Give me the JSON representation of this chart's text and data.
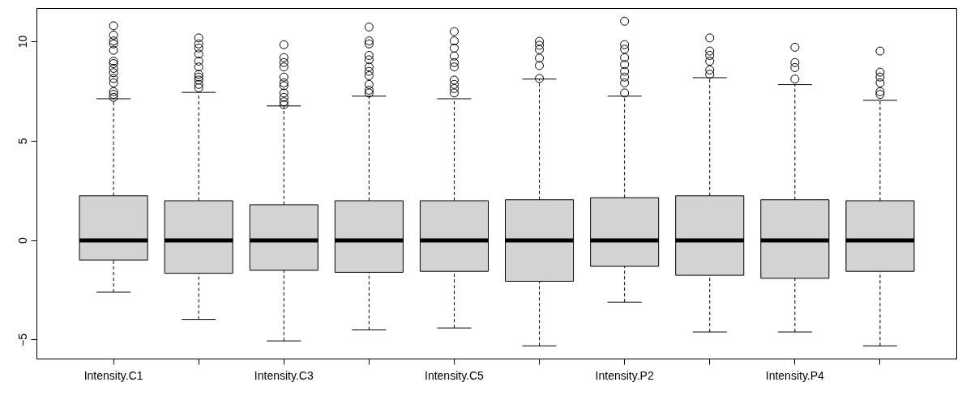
{
  "chart_data": {
    "type": "box",
    "categories": [
      "Intensity.C1",
      null,
      "Intensity.C3",
      null,
      "Intensity.C5",
      null,
      "Intensity.P2",
      null,
      "Intensity.P4",
      null
    ],
    "ylim": [
      -5.96,
      11.67
    ],
    "yticks": [
      -5,
      0,
      5,
      10
    ],
    "grid": false,
    "marker": "circle",
    "series": [
      {
        "color": "#d3d3d3",
        "boxes": [
          {
            "low": -2.6,
            "q1": -0.98,
            "median": 0,
            "q3": 2.25,
            "high": 7.13,
            "outliers": [
              10.8,
              10.33,
              10.04,
              9.89,
              9.57,
              9.02,
              8.9,
              8.66,
              8.44,
              8.15,
              7.93,
              7.49,
              7.35,
              7.2
            ]
          },
          {
            "low": -3.97,
            "q1": -1.65,
            "median": 0,
            "q3": 2.0,
            "high": 7.45,
            "outliers": [
              10.19,
              9.89,
              9.68,
              9.38,
              9.02,
              8.73,
              8.36,
              8.22,
              8.07,
              7.85,
              7.68
            ]
          },
          {
            "low": -5.05,
            "q1": -1.5,
            "median": 0,
            "q3": 1.8,
            "high": 6.77,
            "outliers": [
              9.85,
              9.2,
              8.95,
              8.73,
              8.22,
              7.93,
              7.78,
              7.42,
              7.2,
              6.98,
              6.83
            ]
          },
          {
            "low": -4.5,
            "q1": -1.6,
            "median": 0,
            "q3": 2.0,
            "high": 7.26,
            "outliers": [
              10.74,
              10.04,
              9.89,
              9.31,
              9.09,
              8.73,
              8.51,
              8.29,
              7.85,
              7.56,
              7.42
            ]
          },
          {
            "low": -4.4,
            "q1": -1.55,
            "median": 0,
            "q3": 2.0,
            "high": 7.13,
            "outliers": [
              10.51,
              10.04,
              9.68,
              9.28,
              8.95,
              8.73,
              8.07,
              7.85,
              7.64,
              7.42
            ]
          },
          {
            "low": -5.3,
            "q1": -2.05,
            "median": 0,
            "q3": 2.05,
            "high": 8.12,
            "outliers": [
              10.02,
              9.82,
              9.6,
              9.17,
              8.8,
              8.15
            ]
          },
          {
            "low": -3.1,
            "q1": -1.3,
            "median": 0,
            "q3": 2.15,
            "high": 7.26,
            "outliers": [
              11.03,
              9.85,
              9.62,
              9.2,
              8.85,
              8.51,
              8.22,
              7.93,
              7.42
            ]
          },
          {
            "low": -4.6,
            "q1": -1.75,
            "median": 0,
            "q3": 2.25,
            "high": 8.19,
            "outliers": [
              10.19,
              9.53,
              9.31,
              9.02,
              8.58,
              8.36
            ]
          },
          {
            "low": -4.6,
            "q1": -1.9,
            "median": 0,
            "q3": 2.05,
            "high": 7.84,
            "outliers": [
              9.72,
              8.95,
              8.7,
              8.12
            ]
          },
          {
            "low": -5.3,
            "q1": -1.55,
            "median": 0,
            "q3": 2.0,
            "high": 7.05,
            "outliers": [
              9.53,
              8.47,
              8.22,
              7.93,
              7.49,
              7.35
            ]
          }
        ]
      }
    ]
  }
}
